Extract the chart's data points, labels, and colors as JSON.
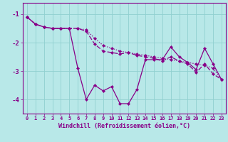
{
  "xlabel": "Windchill (Refroidissement éolien,°C)",
  "background_color": "#b8e8e8",
  "grid_color": "#90d0d0",
  "line_color": "#880088",
  "hours": [
    0,
    1,
    2,
    3,
    4,
    5,
    6,
    7,
    8,
    9,
    10,
    11,
    12,
    13,
    14,
    15,
    16,
    17,
    18,
    19,
    20,
    21,
    22,
    23
  ],
  "series_min": [
    -1.1,
    -1.35,
    -1.45,
    -1.5,
    -1.5,
    -1.5,
    -2.9,
    -4.0,
    -3.5,
    -3.7,
    -3.55,
    -4.15,
    -4.15,
    -3.65,
    -2.6,
    -2.6,
    -2.6,
    -2.15,
    -2.5,
    -2.7,
    -2.95,
    -2.2,
    -2.75,
    -3.3
  ],
  "series_max": [
    -1.1,
    -1.35,
    -1.45,
    -1.5,
    -1.5,
    -1.5,
    -1.5,
    -1.55,
    -1.85,
    -2.1,
    -2.2,
    -2.3,
    -2.35,
    -2.4,
    -2.45,
    -2.5,
    -2.55,
    -2.6,
    -2.65,
    -2.7,
    -2.75,
    -2.8,
    -2.9,
    -3.3
  ],
  "series_avg": [
    -1.1,
    -1.35,
    -1.45,
    -1.5,
    -1.5,
    -1.5,
    -1.5,
    -1.6,
    -2.05,
    -2.3,
    -2.35,
    -2.4,
    -2.35,
    -2.45,
    -2.5,
    -2.55,
    -2.65,
    -2.5,
    -2.65,
    -2.75,
    -3.05,
    -2.75,
    -3.1,
    -3.3
  ],
  "ylim": [
    -4.5,
    -0.6
  ],
  "yticks": [
    -4,
    -3,
    -2,
    -1
  ],
  "xlim": [
    -0.5,
    23.5
  ]
}
